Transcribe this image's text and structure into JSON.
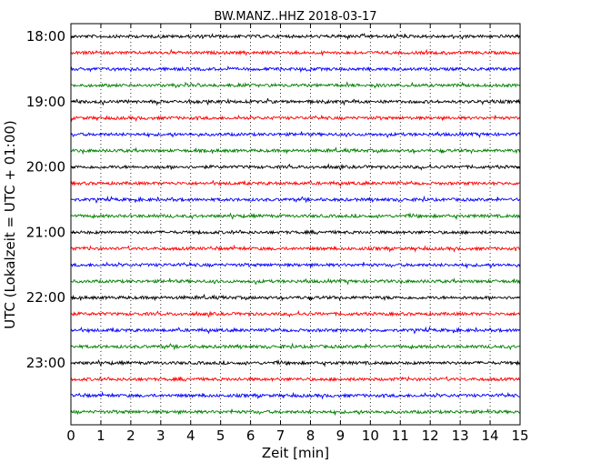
{
  "chart_data": {
    "type": "line",
    "title": "BW.MANZ..HHZ 2018-03-17",
    "xlabel": "Zeit  [min]",
    "ylabel": "UTC (Lokalzeit = UTC + 01:00)",
    "xlim": [
      0,
      15
    ],
    "x_ticks": [
      "0",
      "1",
      "2",
      "3",
      "4",
      "5",
      "6",
      "7",
      "8",
      "9",
      "10",
      "11",
      "12",
      "13",
      "14",
      "15"
    ],
    "y_tick_labels": [
      "18:00",
      "19:00",
      "20:00",
      "21:00",
      "22:00",
      "23:00"
    ],
    "grid": "vertical-dotted",
    "trace_colors": [
      "#000000",
      "#ff0000",
      "#0000ff",
      "#008000"
    ],
    "traces": [
      {
        "start": "18:00",
        "color": "#000000"
      },
      {
        "start": "18:15",
        "color": "#ff0000"
      },
      {
        "start": "18:30",
        "color": "#0000ff"
      },
      {
        "start": "18:45",
        "color": "#008000"
      },
      {
        "start": "19:00",
        "color": "#000000"
      },
      {
        "start": "19:15",
        "color": "#ff0000"
      },
      {
        "start": "19:30",
        "color": "#0000ff"
      },
      {
        "start": "19:45",
        "color": "#008000"
      },
      {
        "start": "20:00",
        "color": "#000000"
      },
      {
        "start": "20:15",
        "color": "#ff0000"
      },
      {
        "start": "20:30",
        "color": "#0000ff"
      },
      {
        "start": "20:45",
        "color": "#008000"
      },
      {
        "start": "21:00",
        "color": "#000000"
      },
      {
        "start": "21:15",
        "color": "#ff0000"
      },
      {
        "start": "21:30",
        "color": "#0000ff"
      },
      {
        "start": "21:45",
        "color": "#008000"
      },
      {
        "start": "22:00",
        "color": "#000000"
      },
      {
        "start": "22:15",
        "color": "#ff0000"
      },
      {
        "start": "22:30",
        "color": "#0000ff"
      },
      {
        "start": "22:45",
        "color": "#008000"
      },
      {
        "start": "23:00",
        "color": "#000000"
      },
      {
        "start": "23:15",
        "color": "#ff0000"
      },
      {
        "start": "23:30",
        "color": "#0000ff"
      },
      {
        "start": "23:45",
        "color": "#008000"
      }
    ]
  }
}
